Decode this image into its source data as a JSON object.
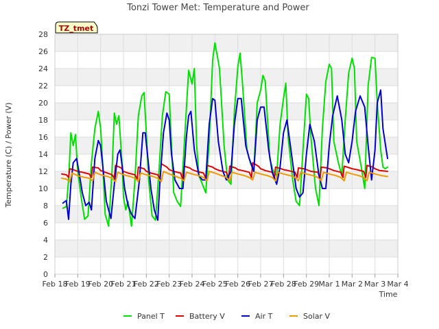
{
  "chart_data": {
    "type": "line",
    "title": "Tonzi Tower Met: Temperature and Power",
    "xlabel": "Time",
    "ylabel": "Temperature (C) / Power (V)",
    "badge": "TZ_tmet",
    "ylim": [
      0,
      28
    ],
    "xlim": [
      0,
      15
    ],
    "x_tick_values": [
      0,
      1,
      2,
      3,
      4,
      5,
      6,
      7,
      8,
      9,
      10,
      11,
      12,
      13,
      14,
      15
    ],
    "x_tick_labels": [
      "Feb 18",
      "Feb 19",
      "Feb 20",
      "Feb 21",
      "Feb 22",
      "Feb 23",
      "Feb 24",
      "Feb 25",
      "Feb 26",
      "Feb 27",
      "Feb 28",
      "Feb 29",
      "Mar 1",
      "Mar 2",
      "Mar 3",
      "Mar 4"
    ],
    "y_tick_values": [
      0,
      2,
      4,
      6,
      8,
      10,
      12,
      14,
      16,
      18,
      20,
      22,
      24,
      26,
      28
    ],
    "y_tick_labels": [
      "0",
      "2",
      "4",
      "6",
      "8",
      "10",
      "12",
      "14",
      "16",
      "18",
      "20",
      "22",
      "24",
      "26",
      "28"
    ],
    "grid": true,
    "legend_position": "bottom",
    "series": [
      {
        "name": "Panel T",
        "color": "#00e000",
        "x": [
          0.35,
          0.5,
          0.6,
          0.7,
          0.8,
          0.9,
          1.0,
          1.15,
          1.3,
          1.45,
          1.6,
          1.75,
          1.9,
          2.0,
          2.1,
          2.2,
          2.35,
          2.5,
          2.6,
          2.7,
          2.8,
          2.95,
          3.0,
          3.1,
          3.2,
          3.35,
          3.5,
          3.65,
          3.8,
          3.9,
          4.0,
          4.1,
          4.25,
          4.4,
          4.55,
          4.7,
          4.85,
          5.0,
          5.1,
          5.2,
          5.35,
          5.5,
          5.7,
          5.85,
          6.0,
          6.1,
          6.2,
          6.3,
          6.45,
          6.6,
          6.75,
          6.9,
          7.0,
          7.1,
          7.2,
          7.4,
          7.55,
          7.7,
          7.85,
          8.0,
          8.1,
          8.2,
          8.4,
          8.55,
          8.7,
          8.85,
          9.0,
          9.1,
          9.2,
          9.4,
          9.55,
          9.7,
          9.85,
          10.0,
          10.1,
          10.2,
          10.4,
          10.55,
          10.7,
          10.85,
          11.0,
          11.1,
          11.2,
          11.4,
          11.55,
          11.7,
          11.85,
          12.0,
          12.1,
          12.2,
          12.4,
          12.55,
          12.7,
          12.85,
          13.0,
          13.1,
          13.2,
          13.4,
          13.55,
          13.7,
          13.85,
          14.0,
          14.1,
          14.25,
          14.35,
          14.45,
          14.55
        ],
        "values": [
          7.7,
          7.9,
          11.0,
          16.5,
          15.0,
          16.3,
          12.0,
          9.0,
          6.4,
          6.8,
          13.0,
          17.0,
          19.0,
          17.0,
          12.5,
          7.0,
          5.6,
          12.0,
          18.8,
          17.5,
          18.5,
          12.5,
          9.0,
          7.5,
          8.5,
          5.6,
          11.0,
          18.5,
          20.8,
          21.2,
          16.5,
          11.0,
          6.8,
          6.3,
          12.0,
          18.5,
          21.3,
          21.0,
          15.0,
          9.5,
          8.5,
          7.9,
          17.0,
          23.8,
          22.2,
          24.0,
          15.0,
          11.5,
          10.5,
          9.5,
          15.5,
          25.0,
          27.0,
          25.5,
          24.0,
          15.0,
          11.0,
          10.5,
          19.0,
          24.2,
          25.8,
          22.5,
          14.5,
          13.0,
          12.0,
          20.0,
          21.5,
          23.2,
          22.5,
          13.5,
          12.0,
          11.5,
          17.5,
          20.5,
          22.3,
          16.0,
          11.0,
          8.5,
          8.0,
          14.5,
          21.0,
          20.5,
          16.0,
          10.0,
          8.0,
          17.0,
          22.5,
          24.5,
          24.0,
          15.5,
          13.0,
          11.5,
          18.0,
          23.5,
          25.2,
          24.0,
          15.5,
          12.5,
          10.0,
          22.0,
          25.3,
          25.2,
          20.0,
          14.5,
          12.5,
          12.3,
          12.5
        ]
      },
      {
        "name": "Battery V",
        "color": "#dd0000",
        "x": [
          0.3,
          0.5,
          0.6,
          0.65,
          0.8,
          1.0,
          1.2,
          1.5,
          1.6,
          1.65,
          1.9,
          2.0,
          2.2,
          2.5,
          2.6,
          2.65,
          2.9,
          3.0,
          3.2,
          3.5,
          3.6,
          3.65,
          3.9,
          4.0,
          4.2,
          4.5,
          4.6,
          4.65,
          4.9,
          5.0,
          5.2,
          5.5,
          5.6,
          5.65,
          5.9,
          6.0,
          6.2,
          6.5,
          6.6,
          6.65,
          6.9,
          7.0,
          7.2,
          7.5,
          7.6,
          7.65,
          7.9,
          8.0,
          8.2,
          8.5,
          8.6,
          8.65,
          8.9,
          9.0,
          9.2,
          9.5,
          9.6,
          9.65,
          9.9,
          10.0,
          10.2,
          10.5,
          10.6,
          10.65,
          10.9,
          11.0,
          11.2,
          11.5,
          11.6,
          11.65,
          11.9,
          12.0,
          12.2,
          12.5,
          12.6,
          12.65,
          12.9,
          13.0,
          13.2,
          13.5,
          13.6,
          13.65,
          13.9,
          14.0,
          14.2,
          14.55
        ],
        "values": [
          11.7,
          11.6,
          11.3,
          12.3,
          12.2,
          12.0,
          11.9,
          11.7,
          11.3,
          12.5,
          12.4,
          12.1,
          11.9,
          11.6,
          11.2,
          12.7,
          12.4,
          12.0,
          11.8,
          11.6,
          11.1,
          12.5,
          12.3,
          12.0,
          11.8,
          11.6,
          11.1,
          12.9,
          12.5,
          12.2,
          12.0,
          11.8,
          11.0,
          12.6,
          12.4,
          12.2,
          12.0,
          11.8,
          11.2,
          12.7,
          12.5,
          12.3,
          12.1,
          11.9,
          11.2,
          12.6,
          12.4,
          12.2,
          12.1,
          11.9,
          11.3,
          13.0,
          12.6,
          12.3,
          12.1,
          11.9,
          11.2,
          12.5,
          12.3,
          12.2,
          12.1,
          11.9,
          11.3,
          12.4,
          12.3,
          12.2,
          12.0,
          11.9,
          11.3,
          12.5,
          12.4,
          12.3,
          12.1,
          11.9,
          11.3,
          12.6,
          12.4,
          12.3,
          12.2,
          12.0,
          11.3,
          12.7,
          12.5,
          12.3,
          12.1,
          12.0
        ]
      },
      {
        "name": "Air T",
        "color": "#0000cc",
        "x": [
          0.35,
          0.5,
          0.6,
          0.7,
          0.8,
          0.95,
          1.05,
          1.2,
          1.35,
          1.5,
          1.6,
          1.75,
          1.9,
          2.0,
          2.1,
          2.25,
          2.45,
          2.6,
          2.75,
          2.85,
          2.95,
          3.05,
          3.2,
          3.35,
          3.5,
          3.7,
          3.85,
          3.95,
          4.05,
          4.2,
          4.35,
          4.5,
          4.6,
          4.75,
          4.9,
          5.0,
          5.1,
          5.25,
          5.45,
          5.6,
          5.75,
          5.85,
          5.95,
          6.1,
          6.3,
          6.45,
          6.6,
          6.75,
          6.9,
          7.0,
          7.15,
          7.35,
          7.5,
          7.7,
          7.85,
          8.0,
          8.15,
          8.35,
          8.5,
          8.7,
          8.85,
          9.0,
          9.15,
          9.35,
          9.5,
          9.7,
          9.85,
          10.0,
          10.15,
          10.35,
          10.55,
          10.7,
          10.85,
          11.0,
          11.15,
          11.35,
          11.55,
          11.7,
          11.85,
          12.0,
          12.15,
          12.35,
          12.55,
          12.7,
          12.85,
          13.0,
          13.15,
          13.35,
          13.55,
          13.7,
          13.85,
          14.0,
          14.1,
          14.25,
          14.35,
          14.55
        ],
        "values": [
          8.3,
          8.6,
          6.4,
          10.5,
          13.0,
          13.5,
          12.0,
          9.5,
          8.0,
          8.4,
          7.5,
          13.5,
          15.6,
          15.0,
          12.5,
          8.5,
          6.5,
          10.5,
          14.0,
          14.5,
          12.5,
          10.0,
          8.0,
          7.0,
          6.5,
          11.0,
          16.5,
          16.5,
          14.0,
          10.0,
          7.5,
          6.3,
          11.0,
          16.5,
          18.8,
          18.0,
          14.0,
          11.0,
          10.0,
          10.0,
          16.0,
          18.5,
          19.0,
          14.5,
          11.5,
          11.0,
          11.0,
          17.5,
          20.5,
          20.3,
          15.5,
          12.0,
          11.0,
          12.0,
          17.5,
          20.5,
          20.5,
          15.0,
          13.5,
          12.0,
          18.0,
          19.5,
          19.5,
          14.5,
          12.0,
          10.5,
          12.5,
          16.5,
          18.0,
          14.0,
          10.0,
          9.0,
          9.5,
          14.0,
          17.5,
          15.5,
          11.5,
          10.0,
          10.0,
          15.0,
          18.5,
          20.8,
          18.0,
          14.0,
          13.0,
          15.5,
          19.0,
          20.8,
          19.5,
          15.0,
          11.0,
          14.5,
          20.0,
          21.5,
          17.0,
          13.5
        ]
      },
      {
        "name": "Solar V",
        "color": "#ee9900",
        "x": [
          0.3,
          0.5,
          0.65,
          0.75,
          1.0,
          1.3,
          1.5,
          1.65,
          1.75,
          2.0,
          2.3,
          2.5,
          2.65,
          2.75,
          3.0,
          3.3,
          3.5,
          3.65,
          3.75,
          4.0,
          4.3,
          4.5,
          4.65,
          4.75,
          5.0,
          5.3,
          5.5,
          5.65,
          5.75,
          6.0,
          6.3,
          6.5,
          6.65,
          6.75,
          7.0,
          7.3,
          7.5,
          7.65,
          7.75,
          8.0,
          8.3,
          8.5,
          8.65,
          8.75,
          9.0,
          9.3,
          9.5,
          9.65,
          9.75,
          10.0,
          10.3,
          10.5,
          10.65,
          10.75,
          11.0,
          11.3,
          11.5,
          11.65,
          11.75,
          12.0,
          12.3,
          12.5,
          12.65,
          12.75,
          13.0,
          13.3,
          13.5,
          13.65,
          13.75,
          14.0,
          14.3,
          14.55
        ],
        "values": [
          11.2,
          11.1,
          10.8,
          11.8,
          11.5,
          11.3,
          11.2,
          10.9,
          11.9,
          11.6,
          11.4,
          11.2,
          10.8,
          11.9,
          11.6,
          11.4,
          11.2,
          10.8,
          11.8,
          11.6,
          11.4,
          11.2,
          10.8,
          12.0,
          11.7,
          11.4,
          11.2,
          10.9,
          11.9,
          11.7,
          11.5,
          11.3,
          10.9,
          12.0,
          11.8,
          11.5,
          11.3,
          10.9,
          11.9,
          11.7,
          11.5,
          11.3,
          11.0,
          11.9,
          11.7,
          11.5,
          11.3,
          10.9,
          11.9,
          11.7,
          11.5,
          11.3,
          10.9,
          11.9,
          11.7,
          11.5,
          11.3,
          10.9,
          11.9,
          11.7,
          11.5,
          11.3,
          10.9,
          11.9,
          11.7,
          11.5,
          11.3,
          10.9,
          11.9,
          11.7,
          11.5,
          11.4
        ]
      }
    ]
  }
}
